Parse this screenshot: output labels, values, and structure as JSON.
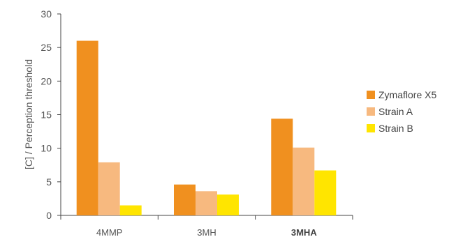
{
  "chart_data": {
    "type": "bar",
    "ylabel": "[C] / Perception threshold",
    "xlabel": "",
    "ylim": [
      0,
      30
    ],
    "yticks": [
      0,
      5,
      10,
      15,
      20,
      25,
      30
    ],
    "categories": [
      "4MMP",
      "3MH",
      "3MHA"
    ],
    "bold_categories": [
      "3MHA"
    ],
    "series": [
      {
        "name": "Zymaflore X5",
        "color": "#f0901f",
        "values": [
          26.0,
          4.6,
          14.4
        ]
      },
      {
        "name": "Strain A",
        "color": "#f7b97f",
        "values": [
          7.9,
          3.6,
          10.1
        ]
      },
      {
        "name": "Strain B",
        "color": "#ffe500",
        "values": [
          1.5,
          3.1,
          6.7
        ]
      }
    ],
    "legend_position": "right",
    "grid": false
  }
}
